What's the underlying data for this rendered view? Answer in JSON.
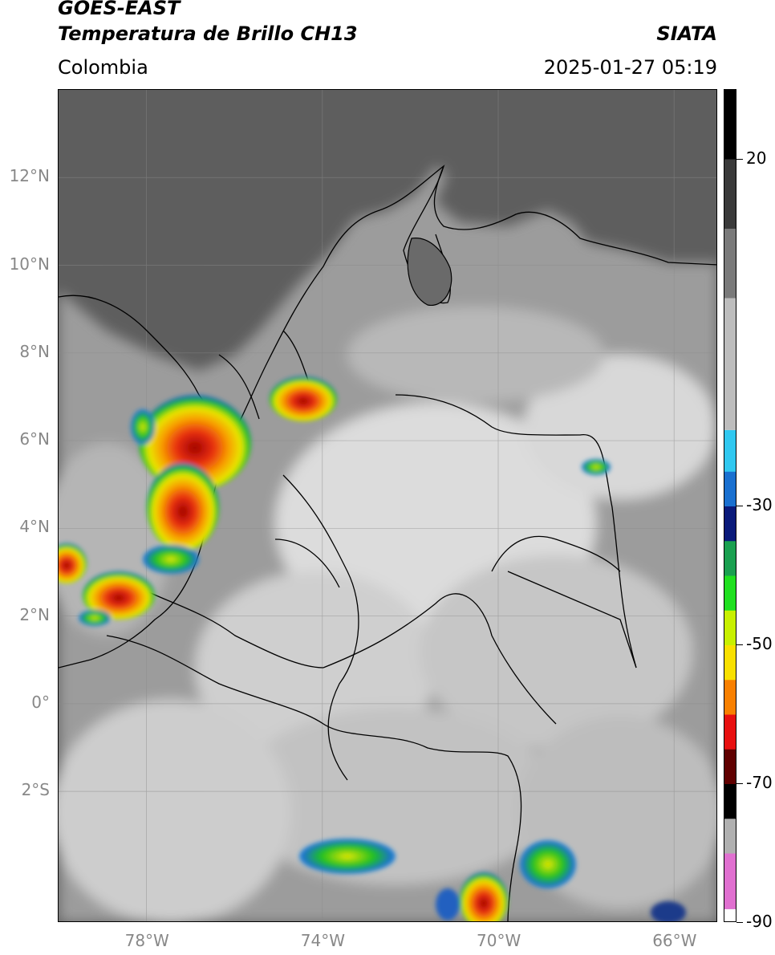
{
  "header": {
    "line1": "GOES-EAST",
    "line2": "Temperatura de Brillo CH13",
    "brand": "SIATA",
    "region": "Colombia",
    "timestamp": "2025-01-27 05:19"
  },
  "map": {
    "extent": {
      "lon_min": -80,
      "lon_max": -65,
      "lat_min": -5,
      "lat_max": 14
    },
    "lat_ticks": [
      {
        "value": 12,
        "label": "12°N"
      },
      {
        "value": 10,
        "label": "10°N"
      },
      {
        "value": 8,
        "label": "8°N"
      },
      {
        "value": 6,
        "label": "6°N"
      },
      {
        "value": 4,
        "label": "4°N"
      },
      {
        "value": 2,
        "label": "2°N"
      },
      {
        "value": 0,
        "label": "0°"
      },
      {
        "value": -2,
        "label": "2°S"
      }
    ],
    "lon_ticks": [
      {
        "value": -78,
        "label": "78°W"
      },
      {
        "value": -74,
        "label": "74°W"
      },
      {
        "value": -70,
        "label": "70°W"
      },
      {
        "value": -66,
        "label": "66°W"
      }
    ],
    "colors": {
      "ocean": "#5e5e5e",
      "land": "#9c9c9c",
      "cloud": "#e0e0e0",
      "border": "#000000",
      "grid": "#8a8a8a"
    }
  },
  "colorbar": {
    "range": [
      -90,
      30
    ],
    "ticks": [
      {
        "value": 20,
        "label": "20"
      },
      {
        "value": -30,
        "label": "-30"
      },
      {
        "value": -50,
        "label": "-50"
      },
      {
        "value": -70,
        "label": "-70"
      },
      {
        "value": -90,
        "label": "-90"
      }
    ]
  }
}
